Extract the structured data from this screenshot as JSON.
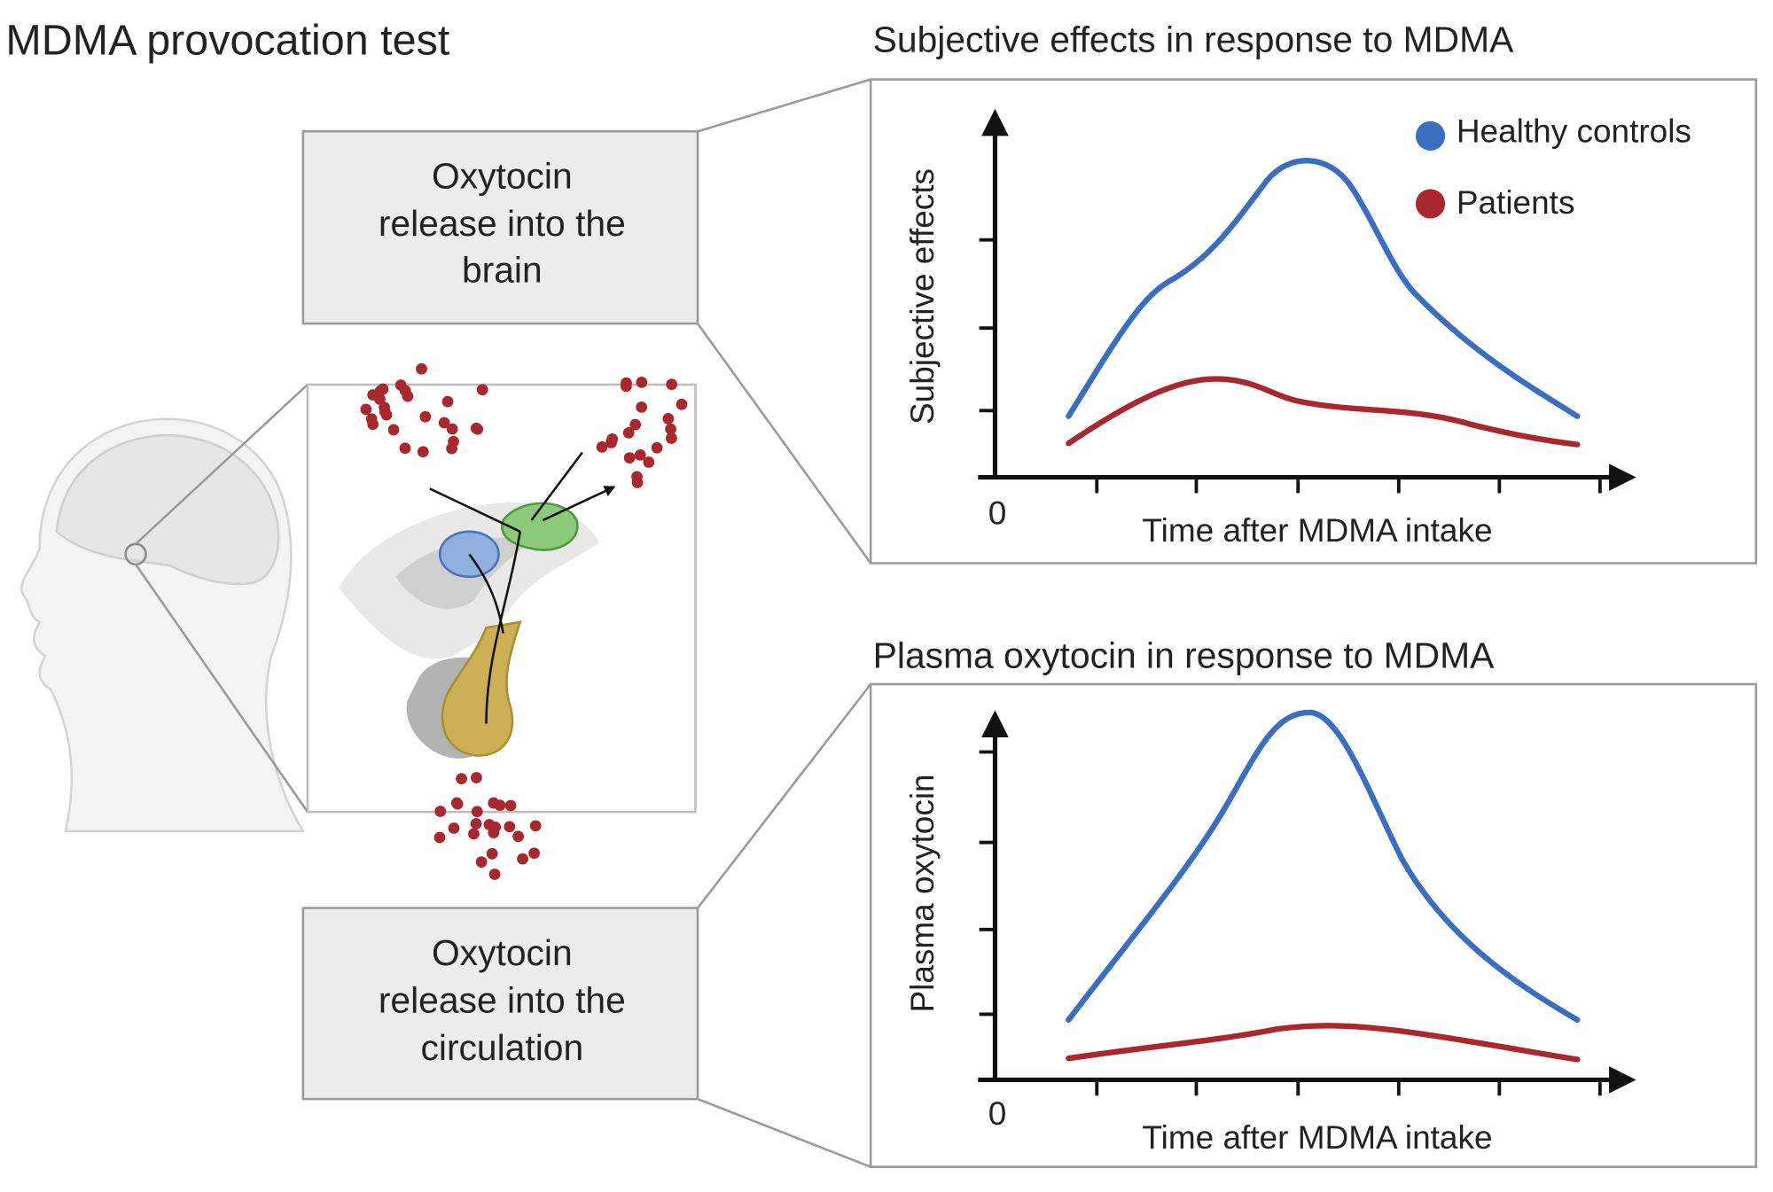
{
  "title": "MDMA provocation test",
  "boxes": [
    {
      "lines": [
        "Oxytocin",
        "release into the",
        "brain"
      ]
    },
    {
      "lines": [
        "Oxytocin",
        "release into the",
        "circulation"
      ]
    }
  ],
  "legend": [
    "Healthy controls",
    "Patients"
  ],
  "charts": [
    {
      "title": "Subjective effects in response to MDMA",
      "y_label": "Subjective effects",
      "x_label": "Time after MDMA intake",
      "origin": "0"
    },
    {
      "title": "Plasma oxytocin in response to MDMA",
      "y_label": "Plasma oxytocin",
      "x_label": "Time after MDMA intake",
      "origin": "0"
    }
  ]
}
